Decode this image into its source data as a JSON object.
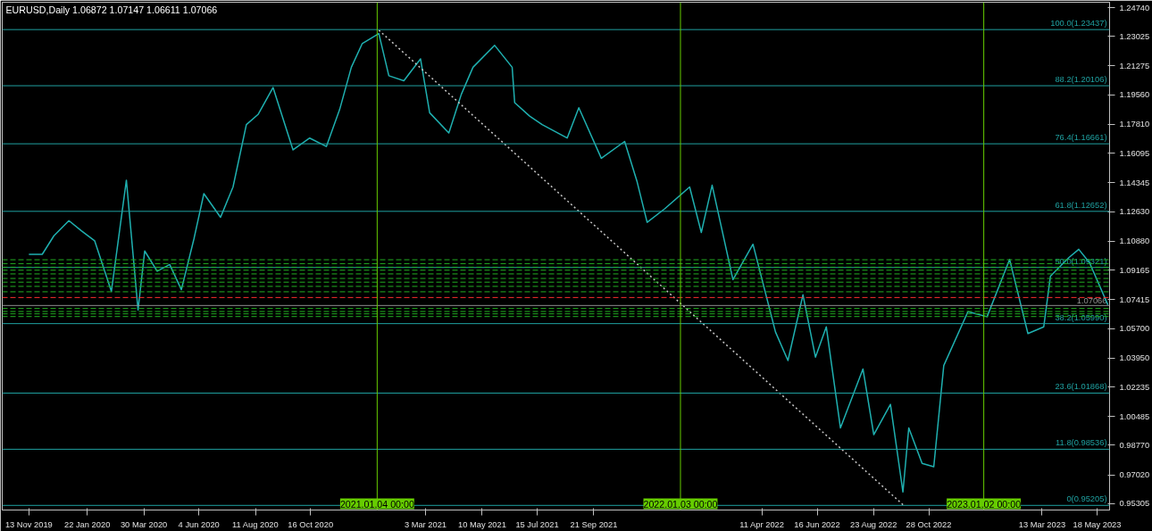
{
  "chart_data": {
    "type": "line",
    "title": "EURUSD,Daily 1.06872 1.07147 1.06611 1.07066",
    "x": [
      "2019-11-13",
      "2019-11-29",
      "2019-12-13",
      "2019-12-31",
      "2020-01-15",
      "2020-01-31",
      "2020-02-20",
      "2020-03-09",
      "2020-03-23",
      "2020-03-31",
      "2020-04-15",
      "2020-04-30",
      "2020-05-14",
      "2020-05-29",
      "2020-06-10",
      "2020-06-30",
      "2020-07-15",
      "2020-07-31",
      "2020-08-14",
      "2020-09-01",
      "2020-09-25",
      "2020-10-15",
      "2020-11-04",
      "2020-11-20",
      "2020-12-04",
      "2020-12-17",
      "2021-01-06",
      "2021-01-18",
      "2021-02-05",
      "2021-02-25",
      "2021-03-08",
      "2021-03-31",
      "2021-04-15",
      "2021-04-29",
      "2021-05-25",
      "2021-06-15",
      "2021-06-18",
      "2021-07-06",
      "2021-07-21",
      "2021-08-20",
      "2021-09-03",
      "2021-09-30",
      "2021-10-28",
      "2021-11-12",
      "2021-11-24",
      "2021-12-15",
      "2022-01-14",
      "2022-01-28",
      "2022-02-10",
      "2022-03-07",
      "2022-03-31",
      "2022-04-27",
      "2022-05-12",
      "2022-05-30",
      "2022-06-14",
      "2022-06-27",
      "2022-07-14",
      "2022-08-10",
      "2022-08-23",
      "2022-09-12",
      "2022-09-27",
      "2022-10-04",
      "2022-10-20",
      "2022-11-03",
      "2022-11-15",
      "2022-12-14",
      "2023-01-06",
      "2023-02-02",
      "2023-02-24",
      "2023-03-15",
      "2023-03-23",
      "2023-04-14",
      "2023-04-26",
      "2023-05-09",
      "2023-05-31"
    ],
    "series": [
      {
        "color": "#1fb0b0",
        "values": [
          1.101,
          1.101,
          1.112,
          1.121,
          1.115,
          1.109,
          1.079,
          1.145,
          1.068,
          1.103,
          1.091,
          1.095,
          1.08,
          1.11,
          1.137,
          1.123,
          1.141,
          1.178,
          1.184,
          1.2,
          1.163,
          1.17,
          1.165,
          1.187,
          1.212,
          1.226,
          1.232,
          1.207,
          1.204,
          1.217,
          1.185,
          1.173,
          1.196,
          1.212,
          1.225,
          1.212,
          1.191,
          1.183,
          1.178,
          1.17,
          1.188,
          1.158,
          1.168,
          1.144,
          1.12,
          1.128,
          1.141,
          1.114,
          1.142,
          1.086,
          1.107,
          1.055,
          1.038,
          1.077,
          1.04,
          1.058,
          0.998,
          1.033,
          0.994,
          1.012,
          0.96,
          0.998,
          0.977,
          0.975,
          1.035,
          1.067,
          1.064,
          1.098,
          1.054,
          1.058,
          1.088,
          1.099,
          1.104,
          1.096,
          1.071
        ]
      },
      {
        "type": "line",
        "color": "#c8c8c8",
        "line_style": "dotted",
        "x": [
          "2021-01-06",
          "2022-09-28"
        ],
        "values": [
          1.234,
          0.952
        ]
      }
    ],
    "xlim": [
      "2019-10-12",
      "2023-06-02"
    ],
    "xticks": [
      {
        "value": "2019-11-13",
        "label": "13 Nov 2019"
      },
      {
        "value": "2020-01-22",
        "label": "22 Jan 2020"
      },
      {
        "value": "2020-03-30",
        "label": "30 Mar 2020"
      },
      {
        "value": "2020-06-04",
        "label": "4 Jun 2020"
      },
      {
        "value": "2020-08-11",
        "label": "11 Aug 2020"
      },
      {
        "value": "2020-10-16",
        "label": "16 Oct 2020"
      },
      {
        "value": "2021-03-03",
        "label": "3 Mar 2021"
      },
      {
        "value": "2021-05-10",
        "label": "10 May 2021"
      },
      {
        "value": "2021-07-15",
        "label": "15 Jul 2021"
      },
      {
        "value": "2021-09-21",
        "label": "21 Sep 2021"
      },
      {
        "value": "2022-04-11",
        "label": "11 Apr 2022"
      },
      {
        "value": "2022-06-16",
        "label": "16 Jun 2022"
      },
      {
        "value": "2022-08-23",
        "label": "23 Aug 2022"
      },
      {
        "value": "2022-10-28",
        "label": "28 Oct 2022"
      },
      {
        "value": "2023-03-13",
        "label": "13 Mar 2023"
      },
      {
        "value": "2023-05-18",
        "label": "18 May 2023"
      }
    ],
    "ylim": [
      0.9493,
      1.2506
    ],
    "yticks": [
      {
        "value": 1.2474,
        "label": "1.24740"
      },
      {
        "value": 1.23025,
        "label": "1.23025"
      },
      {
        "value": 1.21275,
        "label": "1.21275"
      },
      {
        "value": 1.1956,
        "label": "1.19560"
      },
      {
        "value": 1.1781,
        "label": "1.17810"
      },
      {
        "value": 1.16095,
        "label": "1.16095"
      },
      {
        "value": 1.14345,
        "label": "1.14345"
      },
      {
        "value": 1.1263,
        "label": "1.12630"
      },
      {
        "value": 1.1088,
        "label": "1.10880"
      },
      {
        "value": 1.09165,
        "label": "1.09165"
      },
      {
        "value": 1.07415,
        "label": "1.07415"
      },
      {
        "value": 1.057,
        "label": "1.05700"
      },
      {
        "value": 1.0395,
        "label": "1.03950"
      },
      {
        "value": 1.02235,
        "label": "1.02235"
      },
      {
        "value": 1.00485,
        "label": "1.00485"
      },
      {
        "value": 0.9877,
        "label": "0.98770"
      },
      {
        "value": 0.9702,
        "label": "0.97020"
      },
      {
        "value": 0.95305,
        "label": "0.95305"
      }
    ],
    "ref_lines": [
      {
        "axis": "y",
        "value": 1.23437,
        "label": "100.0(1.23437)",
        "color": "#1fa0a0"
      },
      {
        "axis": "y",
        "value": 1.20106,
        "label": "88.2(1.20106)",
        "color": "#1fa0a0"
      },
      {
        "axis": "y",
        "value": 1.16661,
        "label": "76.4(1.16661)",
        "color": "#1fa0a0"
      },
      {
        "axis": "y",
        "value": 1.12652,
        "label": "61.8(1.12652)",
        "color": "#1fa0a0"
      },
      {
        "axis": "y",
        "value": 1.09321,
        "label": "50.0(1.09321)",
        "color": "#1fa0a0"
      },
      {
        "axis": "y",
        "value": 1.0599,
        "label": "38.2(1.05990)",
        "color": "#1fa0a0"
      },
      {
        "axis": "y",
        "value": 1.01868,
        "label": "23.6(1.01868)",
        "color": "#1fa0a0"
      },
      {
        "axis": "y",
        "value": 0.98536,
        "label": "11.8(0.98536)",
        "color": "#1fa0a0"
      },
      {
        "axis": "y",
        "value": 0.95205,
        "label": "0(0.95205)",
        "color": "#1fa0a0"
      },
      {
        "axis": "y",
        "value": 1.0978,
        "color": "#22b022",
        "line_style": "dashed"
      },
      {
        "axis": "y",
        "value": 1.0955,
        "color": "#22b022",
        "line_style": "dashed"
      },
      {
        "axis": "y",
        "value": 1.0934,
        "color": "#22b022",
        "line_style": "dashed"
      },
      {
        "axis": "y",
        "value": 1.0916,
        "color": "#22b022",
        "line_style": "dashed"
      },
      {
        "axis": "y",
        "value": 1.0894,
        "color": "#22b022",
        "line_style": "dashed"
      },
      {
        "axis": "y",
        "value": 1.0867,
        "color": "#22b022",
        "line_style": "dashed"
      },
      {
        "axis": "y",
        "value": 1.0845,
        "color": "#22b022",
        "line_style": "dashed"
      },
      {
        "axis": "y",
        "value": 1.082,
        "color": "#22b022",
        "line_style": "dashed"
      },
      {
        "axis": "y",
        "value": 1.0788,
        "color": "#22b022",
        "line_style": "dashed"
      },
      {
        "axis": "y",
        "value": 1.0754,
        "color": "#ff3030",
        "line_style": "dashed"
      },
      {
        "axis": "y",
        "value": 1.0689,
        "color": "#22b022",
        "line_style": "dashed"
      },
      {
        "axis": "y",
        "value": 1.0671,
        "color": "#22b022",
        "line_style": "dashed"
      },
      {
        "axis": "y",
        "value": 1.0657,
        "color": "#22b022",
        "line_style": "dashed"
      },
      {
        "axis": "y",
        "value": 1.0641,
        "color": "#22b022",
        "line_style": "dashed"
      },
      {
        "axis": "y",
        "value": 1.07066,
        "label": "1.07066",
        "color": "#909090"
      },
      {
        "axis": "x",
        "value": "2021-01-04",
        "label": "2021.01.04 00:00",
        "color": "#66cc00"
      },
      {
        "axis": "x",
        "value": "2022-01-03",
        "label": "2022.01.03 00:00",
        "color": "#66cc00"
      },
      {
        "axis": "x",
        "value": "2023-01-02",
        "label": "2023.01.02 00:00",
        "color": "#66cc00"
      }
    ],
    "grid": false
  }
}
